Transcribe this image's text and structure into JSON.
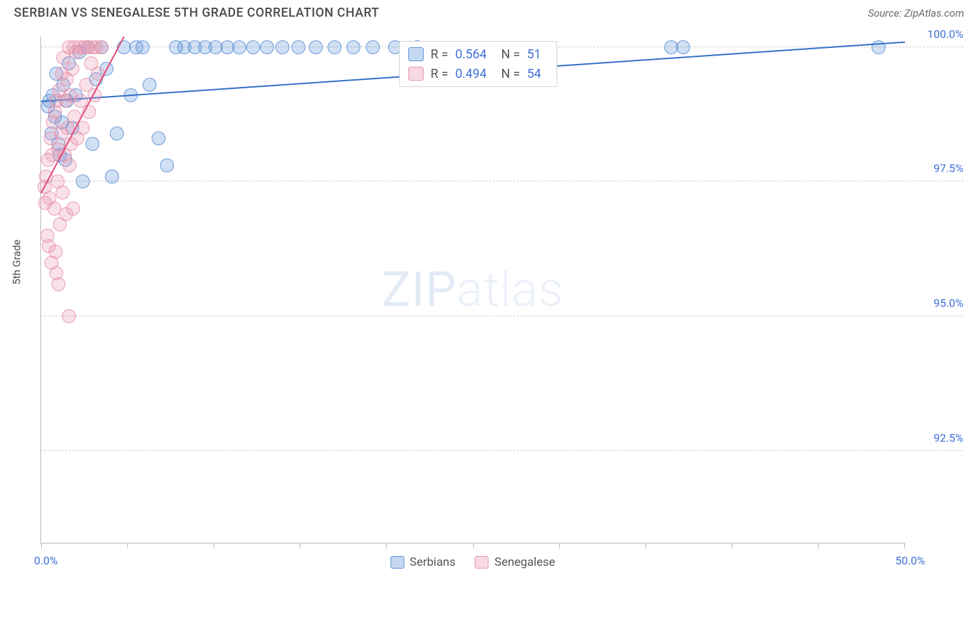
{
  "header": {
    "title": "SERBIAN VS SENEGALESE 5TH GRADE CORRELATION CHART",
    "source": "Source: ZipAtlas.com"
  },
  "watermark": {
    "bold": "ZIP",
    "light": "atlas"
  },
  "chart": {
    "type": "scatter",
    "y_label": "5th Grade",
    "background_color": "#ffffff",
    "grid_color": "#cccccc",
    "axis_color": "#bbbbbb",
    "tick_label_color": "#3f6fd8",
    "xlim": [
      0,
      50
    ],
    "ylim": [
      90.8,
      100.2
    ],
    "x_ticks": [
      0,
      5,
      10,
      15,
      20,
      25,
      30,
      35,
      40,
      45,
      50
    ],
    "x_tick_labels": {
      "min": "0.0%",
      "max": "50.0%"
    },
    "y_ticks": [
      {
        "v": 92.5,
        "label": "92.5%"
      },
      {
        "v": 95.0,
        "label": "95.0%"
      },
      {
        "v": 97.5,
        "label": "97.5%"
      },
      {
        "v": 100.0,
        "label": "100.0%"
      }
    ],
    "marker_radius": 10,
    "marker_fill_opacity": 0.28,
    "marker_stroke_opacity": 0.9,
    "marker_stroke_width": 1.5,
    "trend_line_width": 2,
    "series": [
      {
        "name": "Serbians",
        "color": "#5b8fd6",
        "trend_color": "#356fc9",
        "R": "0.564",
        "N": "51",
        "trend": {
          "x1": 0,
          "y1": 99.0,
          "x2": 50,
          "y2": 100.1
        },
        "points": [
          [
            0.4,
            98.9
          ],
          [
            0.5,
            99.0
          ],
          [
            0.6,
            98.4
          ],
          [
            0.7,
            99.1
          ],
          [
            0.8,
            98.7
          ],
          [
            0.9,
            99.5
          ],
          [
            1.0,
            98.2
          ],
          [
            1.1,
            98.0
          ],
          [
            1.2,
            98.6
          ],
          [
            1.3,
            99.3
          ],
          [
            1.4,
            97.9
          ],
          [
            1.5,
            99.0
          ],
          [
            1.6,
            99.7
          ],
          [
            1.8,
            98.5
          ],
          [
            2.0,
            99.1
          ],
          [
            2.2,
            99.9
          ],
          [
            2.4,
            97.5
          ],
          [
            2.7,
            100.0
          ],
          [
            3.0,
            98.2
          ],
          [
            3.2,
            99.4
          ],
          [
            3.5,
            100.0
          ],
          [
            3.8,
            99.6
          ],
          [
            4.1,
            97.6
          ],
          [
            4.4,
            98.4
          ],
          [
            4.8,
            100.0
          ],
          [
            5.2,
            99.1
          ],
          [
            5.5,
            100.0
          ],
          [
            5.9,
            100.0
          ],
          [
            6.3,
            99.3
          ],
          [
            6.8,
            98.3
          ],
          [
            7.3,
            97.8
          ],
          [
            7.8,
            100.0
          ],
          [
            8.3,
            100.0
          ],
          [
            8.9,
            100.0
          ],
          [
            9.5,
            100.0
          ],
          [
            10.1,
            100.0
          ],
          [
            10.8,
            100.0
          ],
          [
            11.5,
            100.0
          ],
          [
            12.3,
            100.0
          ],
          [
            13.1,
            100.0
          ],
          [
            14.0,
            100.0
          ],
          [
            14.9,
            100.0
          ],
          [
            15.9,
            100.0
          ],
          [
            17.0,
            100.0
          ],
          [
            18.1,
            100.0
          ],
          [
            20.5,
            100.0
          ],
          [
            21.8,
            100.0
          ],
          [
            36.5,
            100.0
          ],
          [
            37.2,
            100.0
          ],
          [
            48.5,
            100.0
          ],
          [
            19.2,
            100.0
          ]
        ]
      },
      {
        "name": "Senegalese",
        "color": "#e895ac",
        "trend_color": "#e24a7a",
        "R": "0.494",
        "N": "54",
        "trend": {
          "x1": 0,
          "y1": 97.3,
          "x2": 4.8,
          "y2": 100.2
        },
        "points": [
          [
            0.2,
            97.4
          ],
          [
            0.25,
            97.1
          ],
          [
            0.3,
            97.6
          ],
          [
            0.35,
            96.5
          ],
          [
            0.4,
            97.9
          ],
          [
            0.45,
            96.3
          ],
          [
            0.5,
            97.2
          ],
          [
            0.55,
            98.3
          ],
          [
            0.6,
            96.0
          ],
          [
            0.65,
            98.0
          ],
          [
            0.7,
            98.6
          ],
          [
            0.75,
            97.0
          ],
          [
            0.8,
            98.8
          ],
          [
            0.85,
            96.2
          ],
          [
            0.9,
            99.0
          ],
          [
            0.95,
            97.5
          ],
          [
            1.0,
            98.1
          ],
          [
            1.05,
            99.2
          ],
          [
            1.1,
            96.7
          ],
          [
            1.15,
            98.4
          ],
          [
            1.2,
            99.5
          ],
          [
            1.25,
            97.3
          ],
          [
            1.3,
            99.8
          ],
          [
            1.35,
            98.0
          ],
          [
            1.4,
            99.0
          ],
          [
            1.45,
            96.9
          ],
          [
            1.5,
            99.4
          ],
          [
            1.55,
            98.5
          ],
          [
            1.6,
            100.0
          ],
          [
            1.65,
            97.8
          ],
          [
            1.7,
            99.1
          ],
          [
            1.75,
            98.2
          ],
          [
            1.8,
            99.6
          ],
          [
            1.85,
            97.0
          ],
          [
            1.9,
            100.0
          ],
          [
            1.95,
            98.7
          ],
          [
            2.0,
            99.9
          ],
          [
            2.1,
            98.3
          ],
          [
            2.2,
            100.0
          ],
          [
            2.3,
            99.0
          ],
          [
            2.4,
            98.5
          ],
          [
            2.5,
            100.0
          ],
          [
            2.6,
            99.3
          ],
          [
            2.7,
            100.0
          ],
          [
            2.8,
            98.8
          ],
          [
            2.9,
            99.7
          ],
          [
            3.0,
            100.0
          ],
          [
            3.1,
            99.1
          ],
          [
            3.2,
            100.0
          ],
          [
            3.3,
            99.5
          ],
          [
            3.5,
            100.0
          ],
          [
            1.0,
            95.6
          ],
          [
            1.6,
            95.0
          ],
          [
            0.9,
            95.8
          ]
        ]
      }
    ],
    "stats_box": {
      "left_pct": 41.5,
      "top_pct": 1.0
    },
    "legend": [
      {
        "label": "Serbians",
        "color": "#5b8fd6"
      },
      {
        "label": "Senegalese",
        "color": "#e895ac"
      }
    ]
  }
}
